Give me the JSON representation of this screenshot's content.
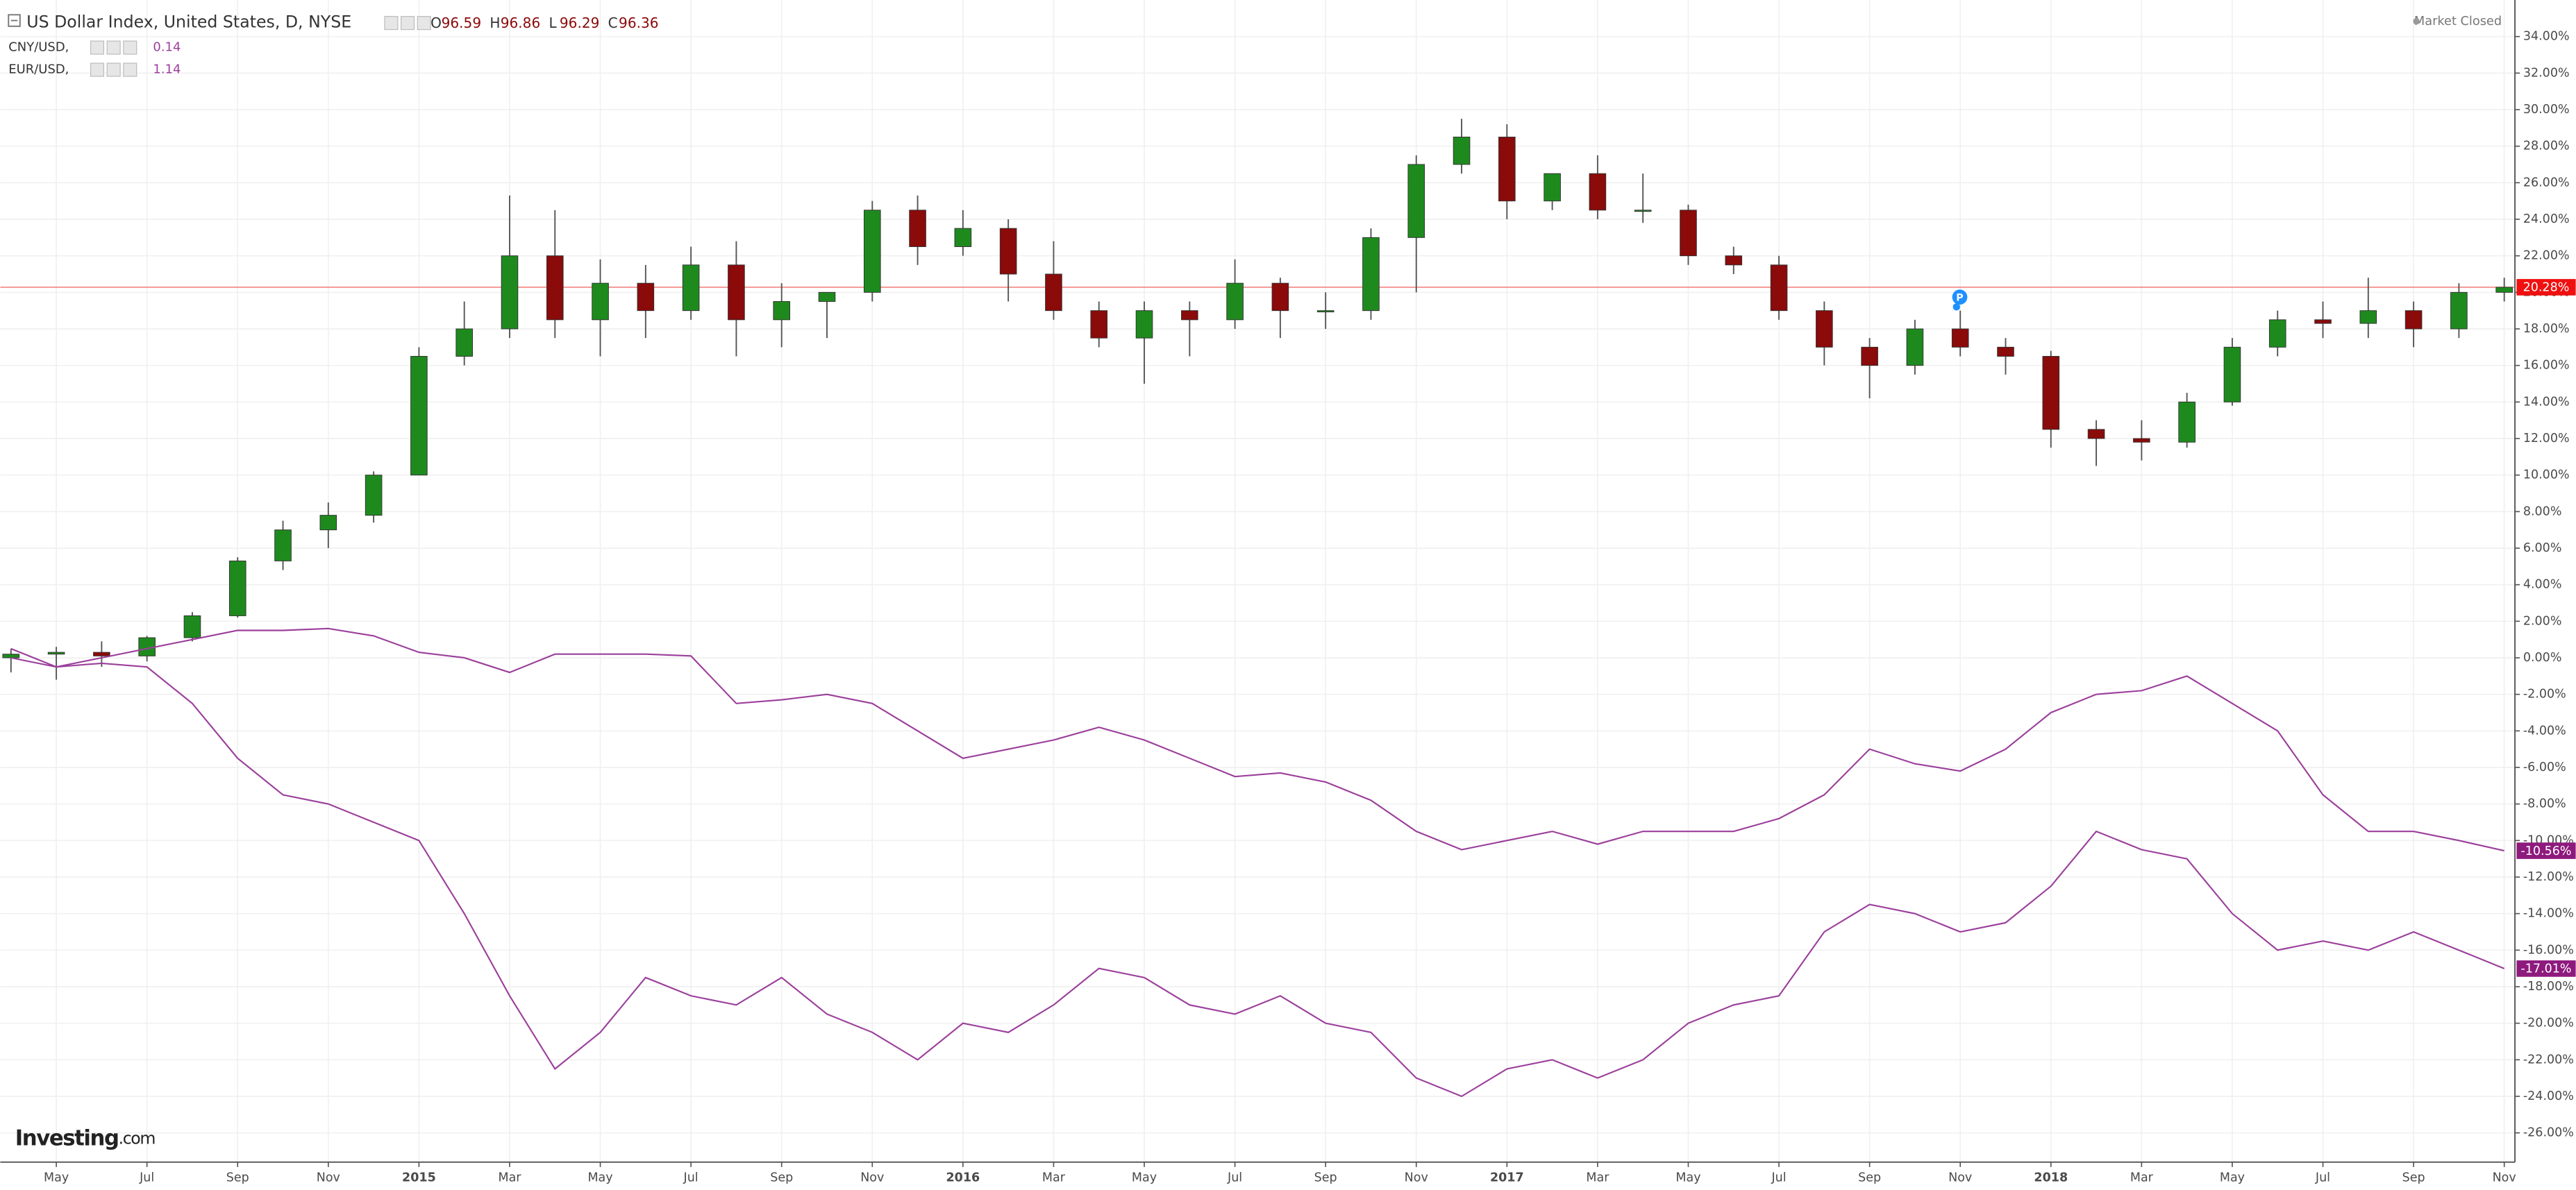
{
  "chart_data": {
    "type": "candlestick",
    "status": "Market Closed",
    "logo": "Investing",
    "logo_suffix": ".com",
    "grid": true,
    "ylim": [
      -27.6,
      36.0
    ],
    "yticks": [
      {
        "value": -26,
        "label": "-26.00%"
      },
      {
        "value": -24,
        "label": "-24.00%"
      },
      {
        "value": -22,
        "label": "-22.00%"
      },
      {
        "value": -20,
        "label": "-20.00%"
      },
      {
        "value": -18,
        "label": "-18.00%"
      },
      {
        "value": -16,
        "label": "-16.00%"
      },
      {
        "value": -14,
        "label": "-14.00%"
      },
      {
        "value": -12,
        "label": "-12.00%"
      },
      {
        "value": -10,
        "label": "-10.00%"
      },
      {
        "value": -8,
        "label": "-8.00%"
      },
      {
        "value": -6,
        "label": "-6.00%"
      },
      {
        "value": -4,
        "label": "-4.00%"
      },
      {
        "value": -2,
        "label": "-2.00%"
      },
      {
        "value": 0,
        "label": "0.00%"
      },
      {
        "value": 2,
        "label": "2.00%"
      },
      {
        "value": 4,
        "label": "4.00%"
      },
      {
        "value": 6,
        "label": "6.00%"
      },
      {
        "value": 8,
        "label": "8.00%"
      },
      {
        "value": 10,
        "label": "10.00%"
      },
      {
        "value": 12,
        "label": "12.00%"
      },
      {
        "value": 14,
        "label": "14.00%"
      },
      {
        "value": 16,
        "label": "16.00%"
      },
      {
        "value": 18,
        "label": "18.00%"
      },
      {
        "value": 20,
        "label": "20.00%"
      },
      {
        "value": 22,
        "label": "22.00%"
      },
      {
        "value": 24,
        "label": "24.00%"
      },
      {
        "value": 26,
        "label": "26.00%"
      },
      {
        "value": 28,
        "label": "28.00%"
      },
      {
        "value": 30,
        "label": "30.00%"
      },
      {
        "value": 32,
        "label": "32.00%"
      },
      {
        "value": 34,
        "label": "34.00%"
      }
    ],
    "categories": [
      null,
      "May",
      null,
      "Jul",
      null,
      "Sep",
      null,
      "Nov",
      null,
      "2015",
      null,
      "Mar",
      null,
      "May",
      null,
      "Jul",
      null,
      "Sep",
      null,
      "Nov",
      null,
      "2016",
      null,
      "Mar",
      null,
      "May",
      null,
      "Jul",
      null,
      "Sep",
      null,
      "Nov",
      null,
      "2017",
      null,
      "Mar",
      null,
      "May",
      null,
      "Jul",
      null,
      "Sep",
      null,
      "Nov",
      null,
      "2018",
      null,
      "Mar",
      null,
      "May",
      null,
      "Jul",
      null,
      "Sep",
      null,
      "Nov"
    ],
    "series": [
      {
        "name": "US Dollar Index, United States, D, NYSE",
        "type": "candlestick",
        "up_color": "#1e8a1e",
        "down_color": "#8b0a0a",
        "line_color": "#f26d6d",
        "ohlc_header": [
          {
            "key": "O",
            "value": 96.59
          },
          {
            "key": "H",
            "value": 96.86
          },
          {
            "key": "L",
            "value": 96.29
          },
          {
            "key": "C",
            "value": 96.36
          }
        ],
        "last_label": "20.28%",
        "label_color": "#f01010",
        "open": [
          0,
          0.2,
          0.3,
          0.1,
          1.1,
          2.3,
          5.3,
          7.0,
          7.8,
          10.0,
          16.5,
          18,
          22,
          18.5,
          20.5,
          19,
          21.5,
          18.5,
          19.5,
          20,
          24.5,
          22.5,
          23.5,
          21,
          19,
          17.5,
          19,
          18.5,
          20.5,
          19,
          19,
          23,
          27,
          28.5,
          25,
          26.5,
          24.5,
          24.5,
          22,
          21.5,
          19,
          17,
          16,
          18,
          17,
          16.5,
          12.5,
          12,
          11.8,
          14,
          17,
          18.5,
          18.3,
          19,
          18,
          20
        ],
        "high": [
          0.5,
          0.6,
          0.9,
          1.2,
          2.5,
          5.5,
          7.5,
          8.5,
          10.2,
          17.0,
          19.5,
          25.3,
          24.5,
          21.8,
          21.5,
          22.5,
          22.8,
          20.5,
          20.0,
          25.0,
          25.3,
          24.5,
          24.0,
          22.8,
          19.5,
          19.5,
          19.5,
          21.8,
          20.8,
          20.0,
          23.5,
          27.5,
          29.5,
          29.2,
          26.5,
          27.5,
          26.5,
          24.8,
          22.5,
          22.0,
          19.5,
          17.5,
          18.5,
          19.0,
          17.5,
          16.8,
          13.0,
          13.0,
          14.5,
          17.5,
          19.0,
          19.5,
          20.8,
          19.5,
          20.5,
          20.8
        ],
        "low": [
          -0.8,
          -1.2,
          -0.5,
          -0.2,
          0.9,
          2.2,
          4.8,
          6.0,
          7.4,
          10.0,
          16.0,
          17.5,
          17.5,
          16.5,
          17.5,
          18.5,
          16.5,
          17.0,
          17.5,
          19.5,
          21.5,
          22.0,
          19.5,
          18.5,
          17.0,
          15.0,
          16.5,
          18.0,
          17.5,
          18.0,
          18.5,
          20.0,
          26.5,
          24.0,
          24.5,
          24.0,
          23.8,
          21.5,
          21.0,
          18.5,
          16.0,
          14.2,
          15.5,
          16.5,
          15.5,
          11.5,
          10.5,
          10.8,
          11.5,
          13.8,
          16.5,
          17.5,
          17.5,
          17.0,
          17.5,
          19.5
        ],
        "close": [
          0.2,
          0.3,
          0.1,
          1.1,
          2.3,
          5.3,
          7.0,
          7.8,
          10.0,
          16.5,
          18.0,
          22.0,
          18.5,
          20.5,
          19.0,
          21.5,
          18.5,
          19.5,
          20.0,
          24.5,
          22.5,
          23.5,
          21.0,
          19.0,
          17.5,
          19.0,
          18.5,
          20.5,
          19.0,
          19.0,
          23.0,
          27.0,
          28.5,
          25.0,
          26.5,
          24.5,
          24.5,
          22.0,
          21.5,
          19.0,
          17.0,
          16.0,
          18.0,
          17.0,
          16.5,
          12.5,
          12.0,
          11.8,
          14.0,
          17.0,
          18.5,
          18.3,
          19.0,
          18.0,
          20.0,
          20.28
        ]
      },
      {
        "name": "CNY/USD,",
        "type": "line",
        "color": "#9b3f9b",
        "legend_value": 0.14,
        "last_label": "-10.56%",
        "label_color": "#8e1a7e",
        "values": [
          0,
          -0.5,
          0,
          0.5,
          1.0,
          1.5,
          1.5,
          1.6,
          1.2,
          0.3,
          0,
          -0.8,
          0.2,
          0.2,
          0.2,
          0.1,
          -2.5,
          -2.3,
          -2.0,
          -2.5,
          -4.0,
          -5.5,
          -5.0,
          -4.5,
          -3.8,
          -4.5,
          -5.5,
          -6.5,
          -6.3,
          -6.8,
          -7.8,
          -9.5,
          -10.5,
          -10.0,
          -9.5,
          -10.2,
          -9.5,
          -9.5,
          -9.5,
          -8.8,
          -7.5,
          -5.0,
          -5.8,
          -6.2,
          -5.0,
          -3.0,
          -2.0,
          -1.8,
          -1.0,
          -2.5,
          -4.0,
          -7.5,
          -9.5,
          -9.5,
          -10.0,
          -10.56
        ]
      },
      {
        "name": "EUR/USD,",
        "type": "line",
        "color": "#9b3f9b",
        "legend_value": 1.14,
        "last_label": "-17.01%",
        "label_color": "#8e1a7e",
        "values": [
          0.5,
          -0.5,
          -0.3,
          -0.5,
          -2.5,
          -5.5,
          -7.5,
          -8.0,
          -9.0,
          -10.0,
          -14.0,
          -18.5,
          -22.5,
          -20.5,
          -17.5,
          -18.5,
          -19.0,
          -17.5,
          -19.5,
          -20.5,
          -22.0,
          -20.0,
          -20.5,
          -19.0,
          -17.0,
          -17.5,
          -19.0,
          -19.5,
          -18.5,
          -20.0,
          -20.5,
          -23.0,
          -24.0,
          -22.5,
          -22.0,
          -23.0,
          -22.0,
          -20.0,
          -19.0,
          -18.5,
          -15.0,
          -13.5,
          -14.0,
          -15.0,
          -14.5,
          -12.5,
          -9.5,
          -10.5,
          -11.0,
          -14.0,
          -16.0,
          -15.5,
          -16.0,
          -15.0,
          -16.0,
          -17.01
        ]
      }
    ]
  }
}
